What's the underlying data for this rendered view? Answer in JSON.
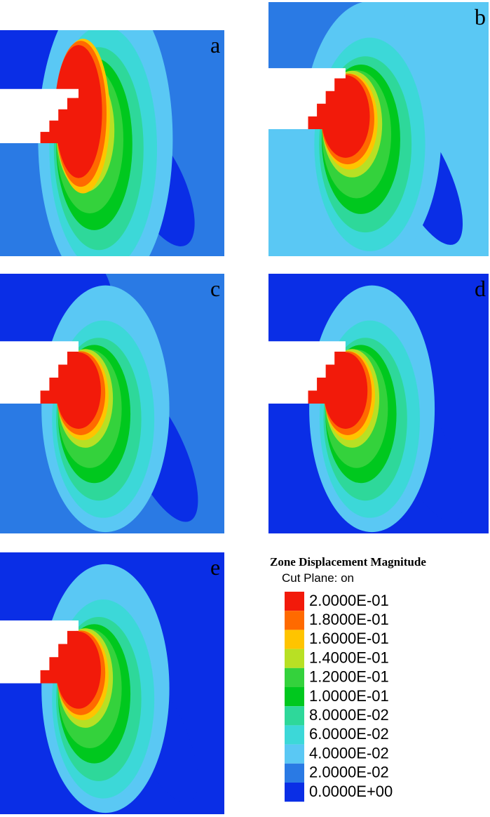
{
  "panels": [
    {
      "label": "a"
    },
    {
      "label": "b"
    },
    {
      "label": "c"
    },
    {
      "label": "d"
    },
    {
      "label": "e"
    }
  ],
  "legend": {
    "title": "Zone Displacement Magnitude",
    "subtitle": "Cut Plane: on",
    "entries": [
      {
        "label": "2.0000E-01",
        "color": "#f21a0a"
      },
      {
        "label": "1.8000E-01",
        "color": "#ff6a00"
      },
      {
        "label": "1.6000E-01",
        "color": "#ffc400"
      },
      {
        "label": "1.4000E-01",
        "color": "#b8e024"
      },
      {
        "label": "1.2000E-01",
        "color": "#34d23c"
      },
      {
        "label": "1.0000E-01",
        "color": "#00c81e"
      },
      {
        "label": "8.0000E-02",
        "color": "#2ed89a"
      },
      {
        "label": "6.0000E-02",
        "color": "#3cd8d8"
      },
      {
        "label": "4.0000E-02",
        "color": "#5ac8f4"
      },
      {
        "label": "2.0000E-02",
        "color": "#2a7ae4"
      },
      {
        "label": "0.0000E+00",
        "color": "#0a2ee6"
      }
    ]
  }
}
